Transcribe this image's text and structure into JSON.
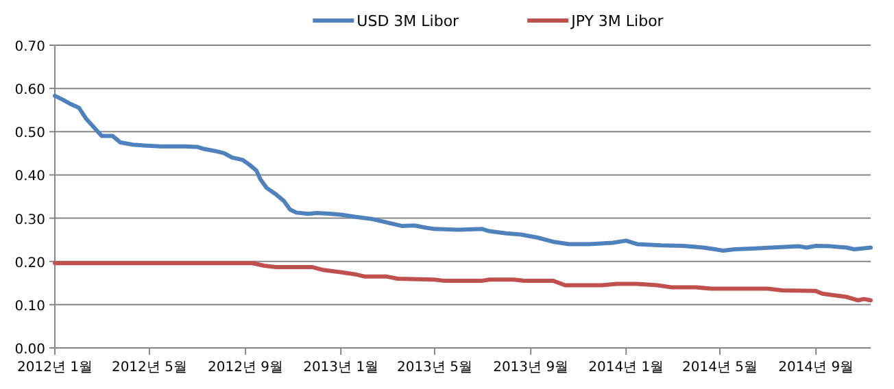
{
  "chart_data": {
    "type": "line",
    "legend": "top",
    "grid": "y",
    "marker": "none",
    "line_style": "solid",
    "xlim": [
      "2012-01-01",
      "2014-11-10"
    ],
    "xticks": [
      {
        "value": "2012-01-01",
        "label": "2012년 1월"
      },
      {
        "value": "2012-05-01",
        "label": "2012년 5월"
      },
      {
        "value": "2012-09-01",
        "label": "2012년 9월"
      },
      {
        "value": "2013-01-01",
        "label": "2013년 1월"
      },
      {
        "value": "2013-05-01",
        "label": "2013년 5월"
      },
      {
        "value": "2013-09-01",
        "label": "2013년 9월"
      },
      {
        "value": "2014-01-01",
        "label": "2014년 1월"
      },
      {
        "value": "2014-05-01",
        "label": "2014년 5월"
      },
      {
        "value": "2014-09-01",
        "label": "2014년 9월"
      }
    ],
    "ylim": [
      0,
      0.7
    ],
    "yticks": [
      {
        "value": 0,
        "label": "0.00"
      },
      {
        "value": 0.1,
        "label": "0.10"
      },
      {
        "value": 0.2,
        "label": "0.20"
      },
      {
        "value": 0.3,
        "label": "0.30"
      },
      {
        "value": 0.4,
        "label": "0.40"
      },
      {
        "value": 0.5,
        "label": "0.50"
      },
      {
        "value": 0.6,
        "label": "0.60"
      },
      {
        "value": 0.7,
        "label": "0.70"
      }
    ],
    "series": [
      {
        "name": "USD 3M Libor",
        "color": "#4f81bd",
        "x": [
          "2012-01-01",
          "2012-01-10",
          "2012-01-20",
          "2012-02-01",
          "2012-02-10",
          "2012-02-20",
          "2012-03-01",
          "2012-03-15",
          "2012-03-25",
          "2012-04-10",
          "2012-04-25",
          "2012-05-15",
          "2012-06-15",
          "2012-07-01",
          "2012-07-10",
          "2012-07-25",
          "2012-08-05",
          "2012-08-15",
          "2012-08-28",
          "2012-09-05",
          "2012-09-15",
          "2012-09-20",
          "2012-09-28",
          "2012-10-10",
          "2012-10-20",
          "2012-10-28",
          "2012-11-05",
          "2012-11-20",
          "2012-12-01",
          "2012-12-20",
          "2013-01-01",
          "2013-01-20",
          "2013-02-10",
          "2013-03-01",
          "2013-03-20",
          "2013-04-05",
          "2013-04-20",
          "2013-05-01",
          "2013-06-01",
          "2013-07-01",
          "2013-07-10",
          "2013-08-01",
          "2013-08-20",
          "2013-09-10",
          "2013-10-01",
          "2013-10-20",
          "2013-11-15",
          "2013-12-15",
          "2014-01-01",
          "2014-01-15",
          "2014-02-15",
          "2014-03-15",
          "2014-04-10",
          "2014-04-25",
          "2014-05-05",
          "2014-05-20",
          "2014-06-15",
          "2014-07-15",
          "2014-08-10",
          "2014-08-20",
          "2014-09-01",
          "2014-09-20",
          "2014-10-10",
          "2014-10-20",
          "2014-11-10"
        ],
        "values": [
          0.583,
          0.575,
          0.565,
          0.555,
          0.53,
          0.51,
          0.49,
          0.49,
          0.475,
          0.47,
          0.468,
          0.466,
          0.466,
          0.465,
          0.46,
          0.455,
          0.45,
          0.44,
          0.435,
          0.425,
          0.41,
          0.39,
          0.37,
          0.355,
          0.34,
          0.32,
          0.313,
          0.31,
          0.312,
          0.31,
          0.308,
          0.303,
          0.298,
          0.29,
          0.282,
          0.283,
          0.278,
          0.275,
          0.273,
          0.275,
          0.27,
          0.265,
          0.262,
          0.255,
          0.245,
          0.24,
          0.24,
          0.243,
          0.248,
          0.24,
          0.237,
          0.236,
          0.232,
          0.228,
          0.225,
          0.228,
          0.23,
          0.233,
          0.235,
          0.232,
          0.236,
          0.235,
          0.232,
          0.228,
          0.232
        ]
      },
      {
        "name": "JPY 3M Libor",
        "color": "#c0504d",
        "x": [
          "2012-01-01",
          "2012-09-10",
          "2012-09-25",
          "2012-10-10",
          "2012-11-25",
          "2012-12-10",
          "2013-01-01",
          "2013-01-20",
          "2013-02-01",
          "2013-03-01",
          "2013-03-15",
          "2013-04-30",
          "2013-05-15",
          "2013-06-30",
          "2013-07-10",
          "2013-08-10",
          "2013-08-25",
          "2013-09-30",
          "2013-10-15",
          "2013-12-01",
          "2013-12-20",
          "2014-01-15",
          "2014-02-10",
          "2014-03-01",
          "2014-04-01",
          "2014-04-20",
          "2014-07-01",
          "2014-07-20",
          "2014-08-31",
          "2014-09-10",
          "2014-10-10",
          "2014-10-25",
          "2014-11-01",
          "2014-11-10"
        ],
        "values": [
          0.196,
          0.196,
          0.19,
          0.187,
          0.187,
          0.18,
          0.175,
          0.17,
          0.165,
          0.165,
          0.16,
          0.158,
          0.155,
          0.155,
          0.158,
          0.158,
          0.155,
          0.155,
          0.145,
          0.145,
          0.148,
          0.148,
          0.145,
          0.14,
          0.14,
          0.137,
          0.137,
          0.133,
          0.132,
          0.125,
          0.118,
          0.11,
          0.113,
          0.11
        ]
      }
    ]
  }
}
